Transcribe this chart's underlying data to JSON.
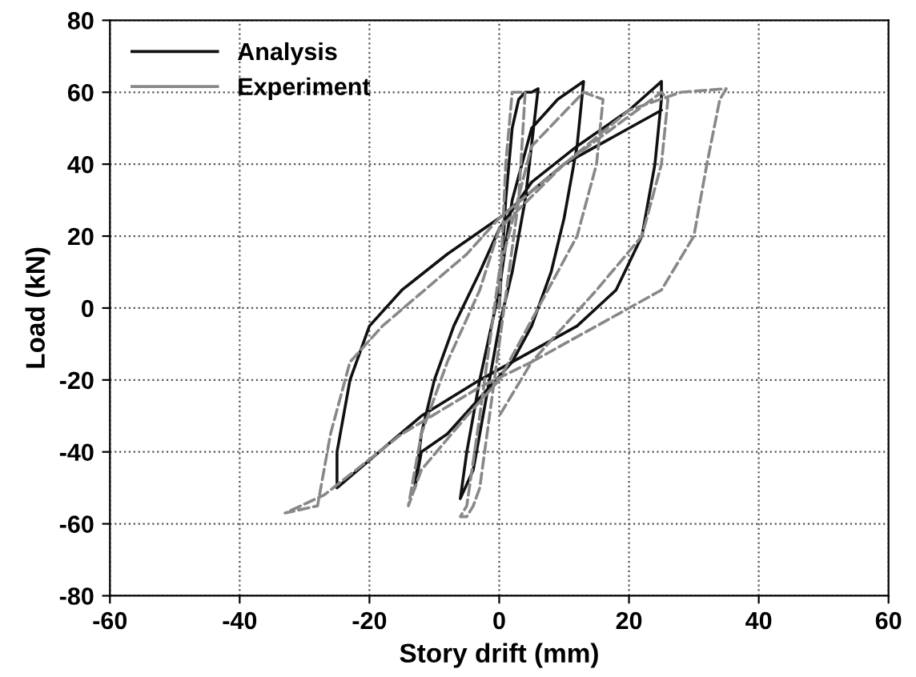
{
  "chart_data": {
    "type": "line",
    "xlabel": "Story drift (mm)",
    "ylabel": "Load (kN)",
    "xlim": [
      -60,
      60
    ],
    "ylim": [
      -80,
      80
    ],
    "xticks": [
      -60,
      -40,
      -20,
      0,
      20,
      40,
      60
    ],
    "yticks": [
      -80,
      -60,
      -40,
      -20,
      0,
      20,
      40,
      60,
      80
    ],
    "grid": true,
    "legend": "top left",
    "marker": "none",
    "series": [
      {
        "name": "Analysis",
        "color": "#111111",
        "line_style": "solid",
        "x": [
          0,
          1,
          2,
          3,
          4,
          5,
          6,
          4,
          2,
          0,
          -2,
          -4,
          -6,
          -5,
          -3,
          0,
          2,
          5,
          9,
          13,
          12,
          10,
          8,
          5,
          2,
          -3,
          -8,
          -12,
          -13,
          -12,
          -10,
          -7,
          -3,
          0,
          5,
          12,
          20,
          25,
          25,
          24,
          22,
          18,
          12,
          5,
          -3,
          -12,
          -25,
          -25,
          -23,
          -20,
          -15,
          -8,
          0,
          10,
          25
        ],
        "values": [
          0,
          30,
          50,
          58,
          60,
          60,
          61,
          30,
          10,
          -5,
          -25,
          -45,
          -53,
          -40,
          -20,
          5,
          30,
          50,
          58,
          63,
          45,
          25,
          10,
          -5,
          -15,
          -25,
          -35,
          -40,
          -50,
          -35,
          -20,
          -5,
          10,
          22,
          35,
          45,
          55,
          63,
          58,
          40,
          20,
          5,
          -5,
          -12,
          -20,
          -30,
          -50,
          -40,
          -20,
          -5,
          5,
          15,
          25,
          40,
          55
        ]
      },
      {
        "name": "Experiment",
        "color": "#888888",
        "line_style": "dashed",
        "x": [
          0,
          1,
          2,
          4,
          3,
          0,
          -3,
          -4,
          -5,
          -6,
          -5,
          -3,
          0,
          5,
          13,
          16,
          15,
          12,
          6,
          0,
          -5,
          -12,
          -14,
          -12,
          -8,
          -3,
          0,
          10,
          25,
          26,
          25,
          22,
          15,
          5,
          -3,
          -15,
          -27,
          -33,
          -28,
          -26,
          -23,
          -18,
          -5,
          0,
          10,
          20,
          28,
          35,
          34,
          32,
          30,
          25,
          15,
          5,
          0
        ],
        "values": [
          0,
          40,
          60,
          60,
          30,
          -10,
          -50,
          -55,
          -58,
          -58,
          -55,
          -30,
          10,
          45,
          60,
          58,
          40,
          20,
          0,
          -20,
          -30,
          -45,
          -55,
          -35,
          -15,
          5,
          22,
          40,
          60,
          58,
          40,
          20,
          5,
          -15,
          -22,
          -35,
          -52,
          -57,
          -55,
          -35,
          -15,
          -5,
          15,
          25,
          40,
          55,
          60,
          61,
          58,
          40,
          20,
          5,
          -5,
          -15,
          -30
        ]
      }
    ]
  }
}
